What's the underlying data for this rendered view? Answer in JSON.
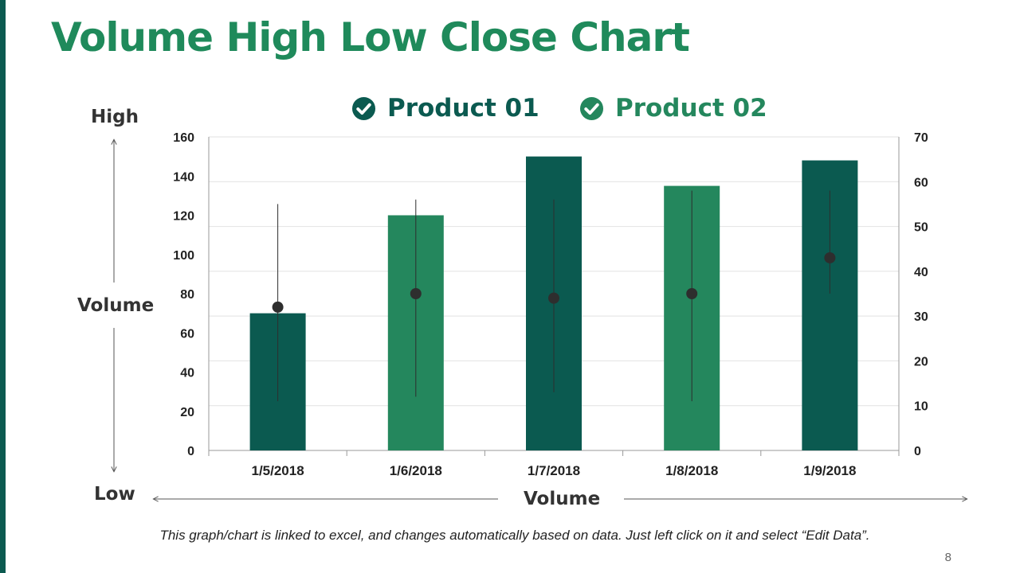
{
  "title": "Volume High Low Close Chart",
  "colors": {
    "accent": "#1f8a5b",
    "product_01": "#0b5a50",
    "product_02": "#24875d",
    "marker": "#2e2e2e"
  },
  "legend": [
    {
      "label": "Product 01",
      "icon": "check-circle-icon",
      "color": "#0b5a50"
    },
    {
      "label": "Product 02",
      "icon": "check-circle-icon",
      "color": "#24875d"
    }
  ],
  "side_labels": {
    "high": "High",
    "volume": "Volume",
    "low": "Low"
  },
  "x_axis_label": "Volume",
  "note": "This graph/chart is linked to excel, and changes automatically based on data. Just left click on it and select “Edit Data”.",
  "page_number": "8",
  "chart_data": {
    "type": "bar",
    "subtype": "volume-high-low-close",
    "categories": [
      "1/5/2018",
      "1/6/2018",
      "1/7/2018",
      "1/8/2018",
      "1/9/2018"
    ],
    "volume": [
      70,
      120,
      150,
      135,
      148
    ],
    "volume_series": [
      "Product 01",
      "Product 02",
      "Product 01",
      "Product 02",
      "Product 01"
    ],
    "high": [
      55,
      56,
      56,
      58,
      58
    ],
    "low": [
      11,
      12,
      13,
      11,
      35
    ],
    "close": [
      32,
      35,
      34,
      35,
      43
    ],
    "y_left": {
      "min": 0,
      "max": 160,
      "ticks": [
        "0",
        "20",
        "40",
        "60",
        "80",
        "100",
        "120",
        "140",
        "160"
      ]
    },
    "y_right": {
      "min": 0,
      "max": 70,
      "ticks": [
        "0",
        "10",
        "20",
        "30",
        "40",
        "50",
        "60",
        "70"
      ]
    },
    "grid": true,
    "legend_position": "top"
  }
}
